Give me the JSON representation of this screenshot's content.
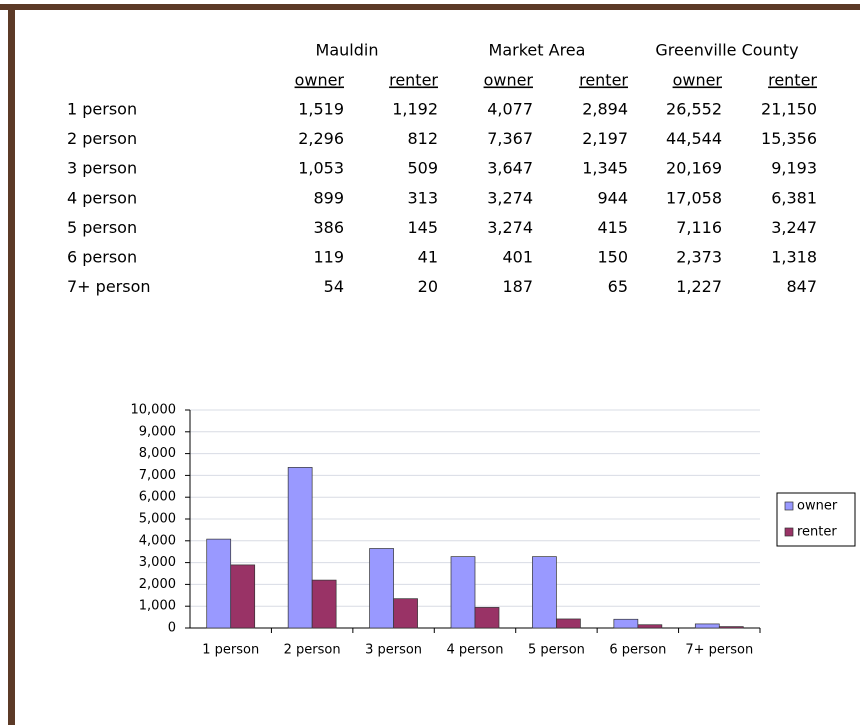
{
  "table": {
    "group_headers": [
      "Mauldin",
      "Market Area",
      "Greenville County"
    ],
    "column_headers": [
      "owner",
      "renter",
      "owner",
      "renter",
      "owner",
      "renter"
    ],
    "rows": [
      {
        "label": "1 person",
        "cells": [
          "1,519",
          "1,192",
          "4,077",
          "2,894",
          "26,552",
          "21,150"
        ]
      },
      {
        "label": "2 person",
        "cells": [
          "2,296",
          "812",
          "7,367",
          "2,197",
          "44,544",
          "15,356"
        ]
      },
      {
        "label": "3 person",
        "cells": [
          "1,053",
          "509",
          "3,647",
          "1,345",
          "20,169",
          "9,193"
        ]
      },
      {
        "label": "4 person",
        "cells": [
          "899",
          "313",
          "3,274",
          "944",
          "17,058",
          "6,381"
        ]
      },
      {
        "label": "5 person",
        "cells": [
          "386",
          "145",
          "3,274",
          "415",
          "7,116",
          "3,247"
        ]
      },
      {
        "label": "6 person",
        "cells": [
          "119",
          "41",
          "401",
          "150",
          "2,373",
          "1,318"
        ]
      },
      {
        "label": "7+ person",
        "cells": [
          "54",
          "20",
          "187",
          "65",
          "1,227",
          "847"
        ]
      }
    ]
  },
  "chart_data": {
    "type": "bar",
    "categories": [
      "1 person",
      "2 person",
      "3 person",
      "4 person",
      "5 person",
      "6 person",
      "7+ person"
    ],
    "series": [
      {
        "name": "owner",
        "color": "#9999ff",
        "values": [
          4077,
          7367,
          3647,
          3274,
          3274,
          401,
          187
        ]
      },
      {
        "name": "renter",
        "color": "#993366",
        "values": [
          2894,
          2197,
          1345,
          944,
          415,
          150,
          65
        ]
      }
    ],
    "ylim": [
      0,
      10000
    ],
    "yticks": [
      0,
      {
        "value": 1000,
        "label": "1,000"
      },
      {
        "value": 2000,
        "label": "2,000"
      },
      {
        "value": 3000,
        "label": "3,000"
      },
      {
        "value": 4000,
        "label": "4,000"
      },
      {
        "value": 5000,
        "label": "5,000"
      },
      {
        "value": 6000,
        "label": "6,000"
      },
      {
        "value": 7000,
        "label": "7,000"
      },
      {
        "value": 8000,
        "label": "8,000"
      },
      {
        "value": 9000,
        "label": "9,000"
      },
      {
        "value": 10000,
        "label": "10,000"
      }
    ],
    "grid": true,
    "legend": "right"
  }
}
